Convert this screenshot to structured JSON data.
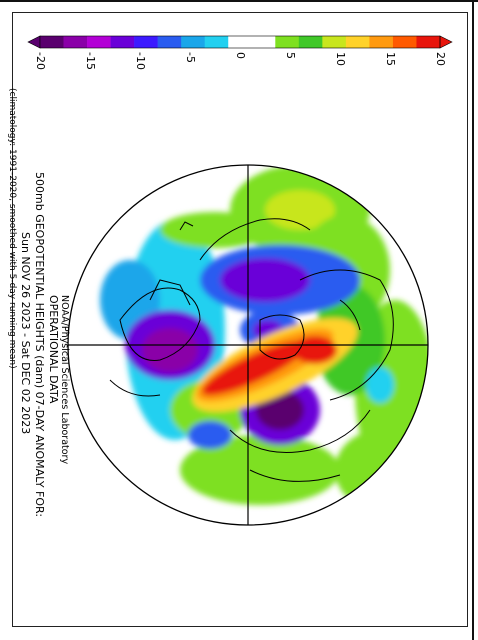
{
  "colorbar": {
    "ticks": [
      "-20",
      "-15",
      "-10",
      "-5",
      "0",
      "5",
      "10",
      "15",
      "20"
    ],
    "tick_values": [
      -20,
      -15,
      -10,
      -5,
      0,
      5,
      10,
      15,
      20
    ],
    "colors": [
      "#5a006e",
      "#8a00a8",
      "#b300d6",
      "#6a00d8",
      "#3c1aff",
      "#2a5cf0",
      "#1aa6ea",
      "#22d0f0",
      "#ffffff",
      "#ffffff",
      "#7ee020",
      "#40c828",
      "#c8e61e",
      "#ffd22a",
      "#ff9a10",
      "#ff5a00",
      "#e8150c"
    ]
  },
  "labels": {
    "producer": "NOAA/Physical Sciences Laboratory",
    "line1": "OPERATIONAL DATA",
    "line2": "500mb GEOPOTENTIAL HEIGHTS (dam) 07-DAY ANOMALY FOR:",
    "line3": "Sun NOV 26 2023 - Sat DEC 02 2023",
    "footnote": "(climatology: 1991-2020, smoothed with 5-day running mean)"
  },
  "map": {
    "projection": "polar stereographic, northern hemisphere (rotated 90°)",
    "anomaly_features": [
      {
        "kind": "positive",
        "color": "#e8150c",
        "description": "strong ridge over Arctic / Greenland"
      },
      {
        "kind": "negative",
        "color": "#5a006e",
        "description": "trough over North America"
      },
      {
        "kind": "negative",
        "color": "#5a006e",
        "description": "trough over western Russia / Scandinavia"
      },
      {
        "kind": "negative",
        "color": "#6a00d8",
        "description": "trough over North Pacific / Siberia"
      }
    ]
  }
}
